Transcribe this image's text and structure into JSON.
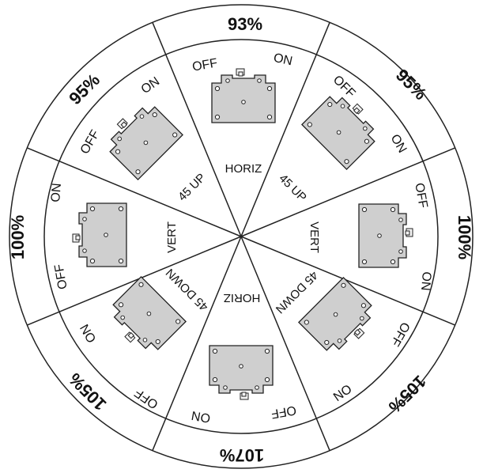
{
  "sectors": [
    {
      "id": "top",
      "percent": "93%",
      "orientation": "HORIZ",
      "label_a": "OFF",
      "label_b": "ON"
    },
    {
      "id": "top-right",
      "percent": "95%",
      "orientation": "45 UP",
      "label_a": "OFF",
      "label_b": "ON"
    },
    {
      "id": "right",
      "percent": "100%",
      "orientation": "VERT",
      "label_a": "OFF",
      "label_b": "ON"
    },
    {
      "id": "bottom-right",
      "percent": "105%",
      "orientation": "45 DOWN",
      "label_a": "OFF",
      "label_b": "ON"
    },
    {
      "id": "bottom",
      "percent": "107%",
      "orientation": "HORIZ",
      "label_a": "OFF",
      "label_b": "ON"
    },
    {
      "id": "bottom-left",
      "percent": "105%",
      "orientation": "45 DOWN",
      "label_a": "OFF",
      "label_b": "ON"
    },
    {
      "id": "left",
      "percent": "100%",
      "orientation": "VERT",
      "label_a": "OFF",
      "label_b": "ON"
    },
    {
      "id": "top-left",
      "percent": "95%",
      "orientation": "45 UP",
      "label_a": "OFF",
      "label_b": "ON"
    }
  ]
}
